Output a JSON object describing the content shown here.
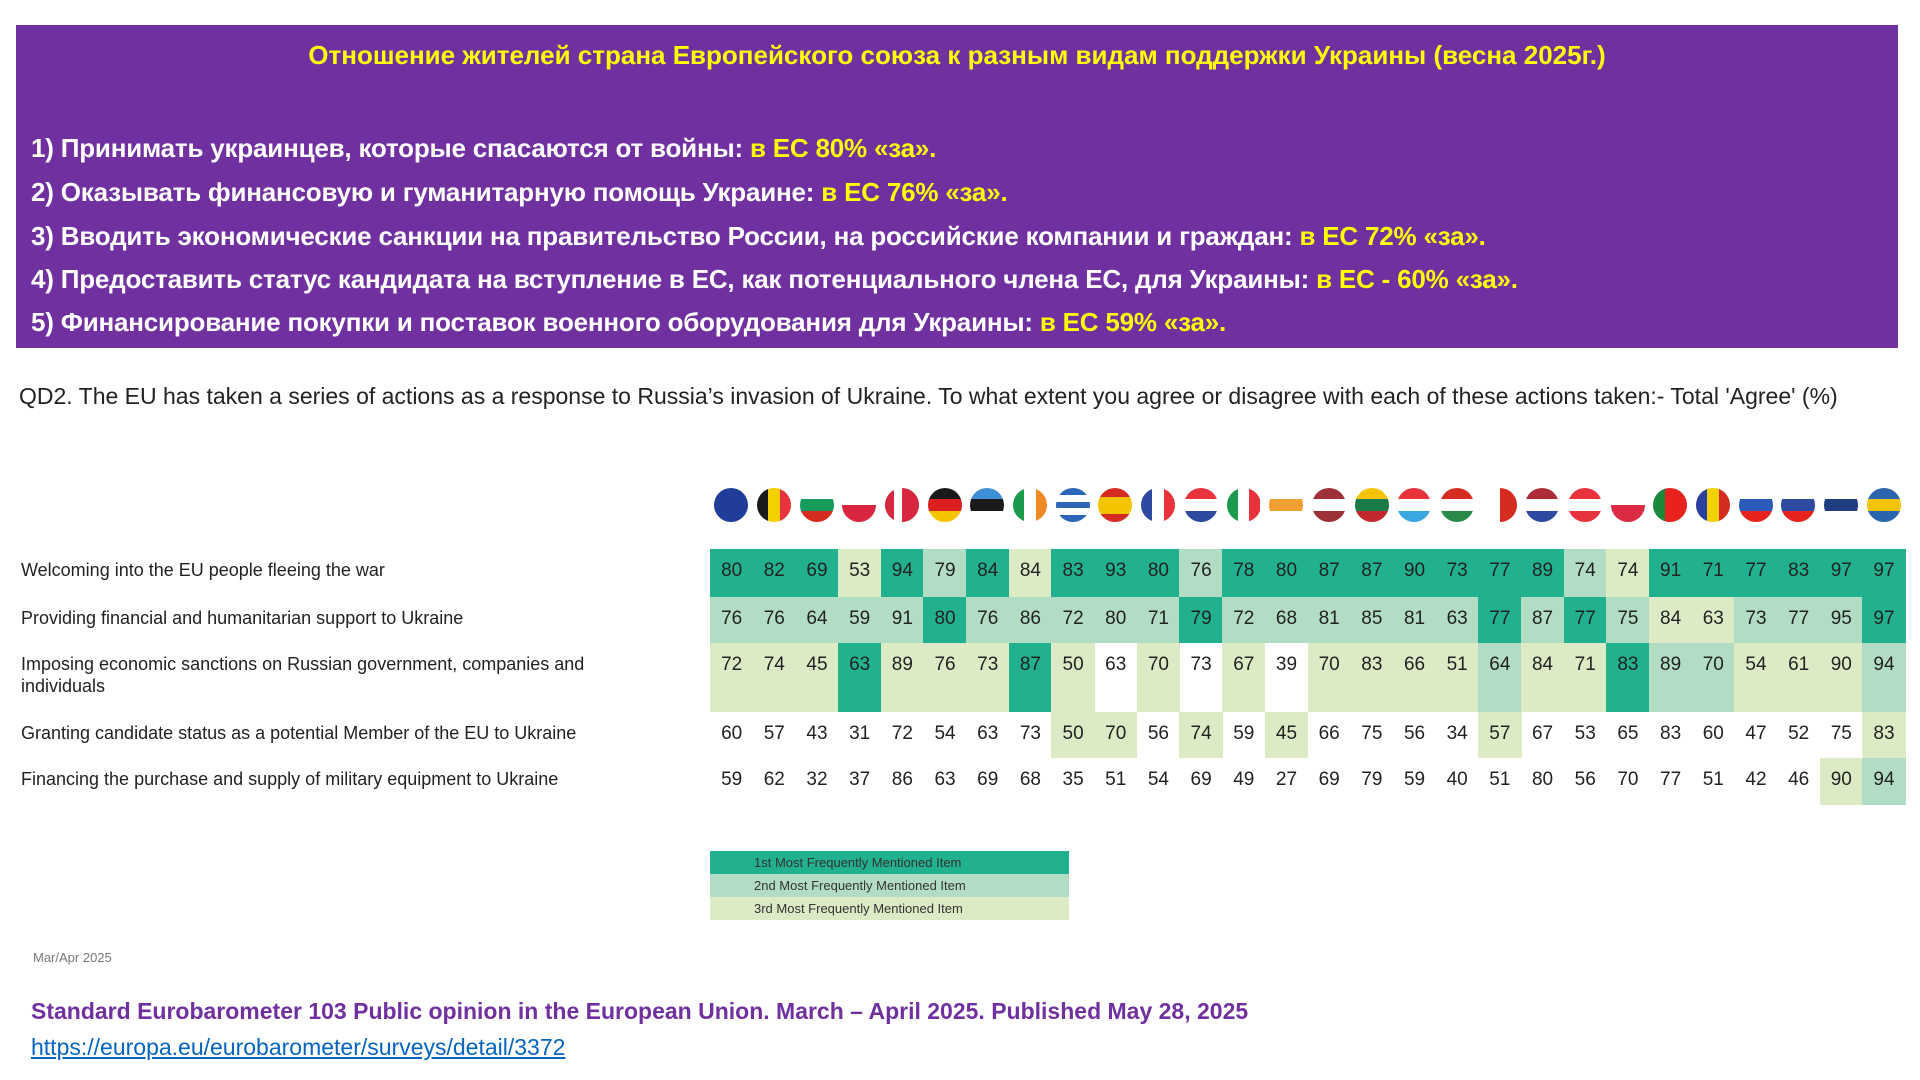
{
  "banner": {
    "title": "Отношение жителей страна Европейского союза к разным видам поддержки Украины (весна 2025г.)",
    "lines": [
      {
        "text": "1) Принимать украинцев, которые спасаются от войны: ",
        "highlight": "в ЕС 80% «за»."
      },
      {
        "text": "2) Оказывать финансовую и гуманитарную помощь Украине: ",
        "highlight": "в ЕС 76% «за»."
      },
      {
        "text": "3) Вводить экономические санкции на правительство России, на российские компании и граждан: ",
        "highlight": "в ЕС 72% «за»."
      },
      {
        "text": "4) Предоставить статус кандидата на вступление в ЕС, как потенциального члена ЕС, для Украины: ",
        "highlight": "в ЕС - 60% «за»."
      },
      {
        "text": "5) Финансирование покупки и поставок военного оборудования для Украины: ",
        "highlight": "в ЕС 59% «за»."
      }
    ]
  },
  "question": "QD2. The EU has taken a series of actions as a response to Russia’s invasion of Ukraine. To what extent you agree or disagree with each of these actions taken:- Total 'Agree' (%)",
  "colors": {
    "banner": "#7030a0",
    "title": "#ffff00",
    "rank1": "#22b18e",
    "rank2": "#b3dcc5",
    "rank3": "#dcebc5"
  },
  "flags": [
    {
      "icon": "flag-eu-icon",
      "dir": "v",
      "colors": [
        "#1f3d99"
      ]
    },
    {
      "icon": "flag-belgium-icon",
      "dir": "v",
      "colors": [
        "#1a1a1a",
        "#f5d000",
        "#e8323c"
      ]
    },
    {
      "icon": "flag-bulgaria-icon",
      "dir": "h",
      "colors": [
        "#ffffff",
        "#159b5b",
        "#d62b20"
      ]
    },
    {
      "icon": "flag-czechia-icon",
      "dir": "h",
      "colors": [
        "#ffffff",
        "#d7263d"
      ]
    },
    {
      "icon": "flag-denmark-icon",
      "dir": "v",
      "colors": [
        "#d7263d",
        "#ffffff",
        "#d7263d",
        "#d7263d"
      ]
    },
    {
      "icon": "flag-germany-icon",
      "dir": "h",
      "colors": [
        "#1a1a1a",
        "#dd1f1f",
        "#f5c400"
      ]
    },
    {
      "icon": "flag-estonia-icon",
      "dir": "h",
      "colors": [
        "#3d8fd6",
        "#1a1a1a",
        "#ffffff"
      ]
    },
    {
      "icon": "flag-ireland-icon",
      "dir": "v",
      "colors": [
        "#1a9a4a",
        "#ffffff",
        "#f08a24"
      ]
    },
    {
      "icon": "flag-greece-icon",
      "dir": "h",
      "colors": [
        "#2b66b8",
        "#ffffff",
        "#2b66b8",
        "#ffffff",
        "#2b66b8"
      ]
    },
    {
      "icon": "flag-spain-icon",
      "dir": "h",
      "colors": [
        "#d62b20",
        "#f5c400",
        "#f5c400",
        "#d62b20"
      ]
    },
    {
      "icon": "flag-france-icon",
      "dir": "v",
      "colors": [
        "#2b4aa0",
        "#ffffff",
        "#e8323c"
      ]
    },
    {
      "icon": "flag-croatia-icon",
      "dir": "h",
      "colors": [
        "#e8323c",
        "#ffffff",
        "#2b4aa0"
      ]
    },
    {
      "icon": "flag-italy-icon",
      "dir": "v",
      "colors": [
        "#1a9a4a",
        "#ffffff",
        "#e8323c"
      ]
    },
    {
      "icon": "flag-cyprus-icon",
      "dir": "h",
      "colors": [
        "#ffffff",
        "#f0a030",
        "#ffffff"
      ]
    },
    {
      "icon": "flag-latvia-icon",
      "dir": "h",
      "colors": [
        "#9e3039",
        "#ffffff",
        "#9e3039"
      ]
    },
    {
      "icon": "flag-lithuania-icon",
      "dir": "h",
      "colors": [
        "#f5c400",
        "#1a7a4a",
        "#c1272d"
      ]
    },
    {
      "icon": "flag-luxembourg-icon",
      "dir": "h",
      "colors": [
        "#e8323c",
        "#ffffff",
        "#3aa8e0"
      ]
    },
    {
      "icon": "flag-hungary-icon",
      "dir": "h",
      "colors": [
        "#d62b20",
        "#ffffff",
        "#2a8a4a"
      ]
    },
    {
      "icon": "flag-malta-icon",
      "dir": "v",
      "colors": [
        "#ffffff",
        "#d62b20"
      ]
    },
    {
      "icon": "flag-netherlands-icon",
      "dir": "h",
      "colors": [
        "#ae2b3a",
        "#ffffff",
        "#2b4aa0"
      ]
    },
    {
      "icon": "flag-austria-icon",
      "dir": "h",
      "colors": [
        "#e8323c",
        "#ffffff",
        "#e8323c"
      ]
    },
    {
      "icon": "flag-poland-icon",
      "dir": "h",
      "colors": [
        "#ffffff",
        "#dc2a43"
      ]
    },
    {
      "icon": "flag-portugal-icon",
      "dir": "v",
      "colors": [
        "#1a8a3a",
        "#e8231e",
        "#e8231e"
      ]
    },
    {
      "icon": "flag-romania-icon",
      "dir": "v",
      "colors": [
        "#2b3f9e",
        "#f5d000",
        "#d62b20"
      ]
    },
    {
      "icon": "flag-slovenia-icon",
      "dir": "h",
      "colors": [
        "#ffffff",
        "#2b5ab8",
        "#e8231e"
      ]
    },
    {
      "icon": "flag-slovakia-icon",
      "dir": "h",
      "colors": [
        "#ffffff",
        "#2b4aa0",
        "#e8231e"
      ]
    },
    {
      "icon": "flag-finland-icon",
      "dir": "h",
      "colors": [
        "#ffffff",
        "#1f3d80",
        "#ffffff"
      ]
    },
    {
      "icon": "flag-sweden-icon",
      "dir": "h",
      "colors": [
        "#2b64ad",
        "#f5c400",
        "#2b64ad"
      ]
    }
  ],
  "chart_data": {
    "type": "table",
    "title": "QD2. The EU has taken a series of actions as a response to Russia’s invasion of Ukraine. To what extent you agree or disagree with each of these actions taken:- Total 'Agree' (%)",
    "columns": [
      "EU",
      "BE",
      "BG",
      "CZ",
      "DK",
      "DE",
      "EE",
      "IE",
      "EL",
      "ES",
      "FR",
      "HR",
      "IT",
      "CY",
      "LV",
      "LT",
      "LU",
      "HU",
      "MT",
      "NL",
      "AT",
      "PL",
      "PT",
      "RO",
      "SI",
      "SK",
      "FI",
      "SE"
    ],
    "rows": [
      {
        "label": "Welcoming into the EU people fleeing the war",
        "values": [
          80,
          82,
          69,
          53,
          94,
          79,
          84,
          84,
          83,
          93,
          80,
          76,
          78,
          80,
          87,
          87,
          90,
          73,
          77,
          89,
          74,
          74,
          91,
          71,
          77,
          83,
          97,
          97
        ],
        "rank": [
          1,
          1,
          1,
          3,
          1,
          2,
          1,
          3,
          1,
          1,
          1,
          2,
          1,
          1,
          1,
          1,
          1,
          1,
          1,
          1,
          2,
          3,
          1,
          1,
          1,
          1,
          1,
          1
        ]
      },
      {
        "label": "Providing financial and humanitarian support to Ukraine",
        "values": [
          76,
          76,
          64,
          59,
          91,
          80,
          76,
          86,
          72,
          80,
          71,
          79,
          72,
          68,
          81,
          85,
          81,
          63,
          77,
          87,
          77,
          75,
          84,
          63,
          73,
          77,
          95,
          97
        ],
        "rank": [
          2,
          2,
          2,
          2,
          2,
          1,
          2,
          2,
          2,
          2,
          2,
          1,
          2,
          2,
          2,
          2,
          2,
          2,
          1,
          2,
          1,
          2,
          3,
          3,
          2,
          2,
          2,
          1
        ]
      },
      {
        "label": "Imposing economic sanctions on Russian government, companies and individuals",
        "values": [
          72,
          74,
          45,
          63,
          89,
          76,
          73,
          87,
          50,
          63,
          70,
          73,
          67,
          39,
          70,
          83,
          66,
          51,
          64,
          84,
          71,
          83,
          89,
          70,
          54,
          61,
          90,
          94
        ],
        "rank": [
          3,
          3,
          3,
          1,
          3,
          3,
          3,
          1,
          3,
          0,
          3,
          0,
          3,
          0,
          3,
          3,
          3,
          3,
          2,
          3,
          3,
          1,
          2,
          2,
          3,
          3,
          3,
          2
        ]
      },
      {
        "label": "Granting candidate status as a potential Member of the EU to Ukraine",
        "values": [
          60,
          57,
          43,
          31,
          72,
          54,
          63,
          73,
          50,
          70,
          56,
          74,
          59,
          45,
          66,
          75,
          56,
          34,
          57,
          67,
          53,
          65,
          83,
          60,
          47,
          52,
          75,
          83
        ],
        "rank": [
          0,
          0,
          0,
          0,
          0,
          0,
          0,
          0,
          3,
          3,
          0,
          3,
          0,
          3,
          0,
          0,
          0,
          0,
          3,
          0,
          0,
          0,
          0,
          0,
          0,
          0,
          0,
          3
        ]
      },
      {
        "label": "Financing the purchase and supply of military equipment to Ukraine",
        "values": [
          59,
          62,
          32,
          37,
          86,
          63,
          69,
          68,
          35,
          51,
          54,
          69,
          49,
          27,
          69,
          79,
          59,
          40,
          51,
          80,
          56,
          70,
          77,
          51,
          42,
          46,
          90,
          94
        ],
        "rank": [
          0,
          0,
          0,
          0,
          0,
          0,
          0,
          0,
          0,
          0,
          0,
          0,
          0,
          0,
          0,
          0,
          0,
          0,
          0,
          0,
          0,
          0,
          0,
          0,
          0,
          0,
          3,
          2
        ]
      }
    ],
    "legend": [
      "1st Most Frequently Mentioned Item",
      "2nd Most Frequently Mentioned Item",
      "3rd Most Frequently Mentioned Item"
    ]
  },
  "date_note": "Mar/Apr 2025",
  "source": "Standard Eurobarometer 103 Public opinion in the European Union. March – April 2025. Published May 28, 2025",
  "link": "https://europa.eu/eurobarometer/surveys/detail/3372"
}
